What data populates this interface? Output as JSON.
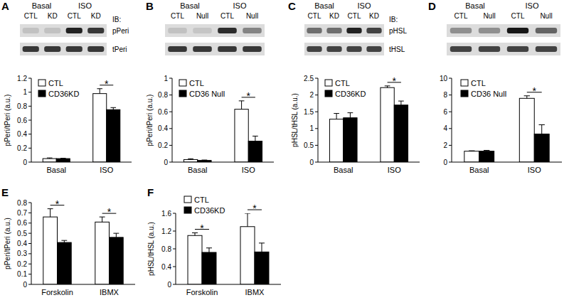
{
  "chart_data": [
    {
      "type": "bar",
      "panel": "A",
      "y_label": "pPeri/tPeri (a.u.)",
      "categories": [
        "Basal",
        "ISO"
      ],
      "series": [
        {
          "name": "CTL",
          "color": "#ffffff",
          "values": [
            0.05,
            0.98
          ],
          "errors": [
            0.01,
            0.07
          ]
        },
        {
          "name": "CD36KD",
          "color": "#000000",
          "values": [
            0.05,
            0.75
          ],
          "errors": [
            0.005,
            0.03
          ]
        }
      ],
      "ylim": [
        0,
        1.2
      ],
      "yticks": [
        0,
        0.2,
        0.4,
        0.6,
        0.8,
        1,
        1.2
      ],
      "legend": "upper left",
      "annotations": [
        {
          "category": "ISO",
          "text": "*"
        }
      ],
      "blot": {
        "groups": [
          "Basal",
          "ISO"
        ],
        "lanes": [
          "CTL",
          "KD",
          "CTL",
          "KD"
        ],
        "label": "IB:",
        "rows": [
          "pPeri",
          "tPeri"
        ]
      }
    },
    {
      "type": "bar",
      "panel": "B",
      "y_label": "pPeri/tPeri (a.u.)",
      "categories": [
        "Basal",
        "ISO"
      ],
      "series": [
        {
          "name": "CTL",
          "color": "#ffffff",
          "values": [
            0.03,
            0.63
          ],
          "errors": [
            0.01,
            0.1
          ]
        },
        {
          "name": "CD36 Null",
          "color": "#000000",
          "values": [
            0.02,
            0.25
          ],
          "errors": [
            0.005,
            0.06
          ]
        }
      ],
      "ylim": [
        0,
        1
      ],
      "yticks": [
        0,
        0.2,
        0.4,
        0.6,
        0.8,
        1
      ],
      "legend": "upper left",
      "annotations": [
        {
          "category": "ISO",
          "text": "*"
        }
      ],
      "blot": {
        "groups": [
          "Basal",
          "ISO"
        ],
        "lanes": [
          "CTL",
          "Null",
          "CTL",
          "Null"
        ]
      }
    },
    {
      "type": "bar",
      "panel": "C",
      "y_label": "pHSL/tHSL (a.u.)",
      "categories": [
        "Basal",
        "ISO"
      ],
      "series": [
        {
          "name": "CTL",
          "color": "#ffffff",
          "values": [
            1.28,
            2.22
          ],
          "errors": [
            0.17,
            0.05
          ]
        },
        {
          "name": "CD36KD",
          "color": "#000000",
          "values": [
            1.32,
            1.7
          ],
          "errors": [
            0.15,
            0.12
          ]
        }
      ],
      "ylim": [
        0,
        2.5
      ],
      "yticks": [
        0,
        0.5,
        1,
        1.5,
        2,
        2.5
      ],
      "legend": "upper left",
      "annotations": [
        {
          "category": "ISO",
          "text": "*"
        }
      ],
      "blot": {
        "groups": [
          "Basal",
          "ISO"
        ],
        "lanes": [
          "CTL",
          "KD",
          "CTL",
          "KD"
        ],
        "label": "IB:",
        "rows": [
          "pHSL",
          "tHSL"
        ]
      }
    },
    {
      "type": "bar",
      "panel": "D",
      "categories": [
        "Basal",
        "ISO"
      ],
      "series": [
        {
          "name": "CTL",
          "color": "#ffffff",
          "values": [
            1.3,
            7.6
          ],
          "errors": [
            0.05,
            0.3
          ]
        },
        {
          "name": "CD36 Null",
          "color": "#000000",
          "values": [
            1.3,
            3.35
          ],
          "errors": [
            0.1,
            1.1
          ]
        }
      ],
      "ylim": [
        0,
        10
      ],
      "yticks": [
        0,
        2,
        4,
        6,
        8,
        10
      ],
      "legend": "upper left",
      "annotations": [
        {
          "category": "ISO",
          "text": "*"
        }
      ],
      "blot": {
        "groups": [
          "Basal",
          "ISO"
        ],
        "lanes": [
          "CTL",
          "Null",
          "CTL",
          "Null"
        ]
      }
    },
    {
      "type": "bar",
      "panel": "E",
      "y_label": "pPeri/tPeri (a.u.)",
      "categories": [
        "Forskolin",
        "IBMX"
      ],
      "series": [
        {
          "color": "#ffffff",
          "values": [
            0.66,
            0.61
          ],
          "errors": [
            0.08,
            0.05
          ]
        },
        {
          "color": "#000000",
          "values": [
            0.41,
            0.46
          ],
          "errors": [
            0.02,
            0.04
          ]
        }
      ],
      "ylim": [
        0,
        0.8
      ],
      "yticks": [
        0,
        0.1,
        0.2,
        0.3,
        0.4,
        0.5,
        0.6,
        0.7,
        0.8
      ],
      "annotations": [
        {
          "category": "Forskolin",
          "text": "*"
        },
        {
          "category": "IBMX",
          "text": "*"
        }
      ]
    },
    {
      "type": "bar",
      "panel": "F",
      "y_label": "pHSL/tHSL (a.u.)",
      "categories": [
        "Forskolin",
        "IBMX"
      ],
      "series": [
        {
          "name": "CTL",
          "color": "#ffffff",
          "values": [
            1.1,
            1.3
          ],
          "errors": [
            0.06,
            0.3
          ]
        },
        {
          "name": "CD36KD",
          "color": "#000000",
          "values": [
            0.72,
            0.73
          ],
          "errors": [
            0.1,
            0.2
          ]
        }
      ],
      "ylim": [
        0,
        1.6
      ],
      "yticks": [
        0,
        0.4,
        0.8,
        1.2,
        1.6
      ],
      "legend": "upper left",
      "annotations": [
        {
          "category": "Forskolin",
          "text": "*"
        },
        {
          "category": "IBMX",
          "text": "*"
        }
      ]
    }
  ]
}
